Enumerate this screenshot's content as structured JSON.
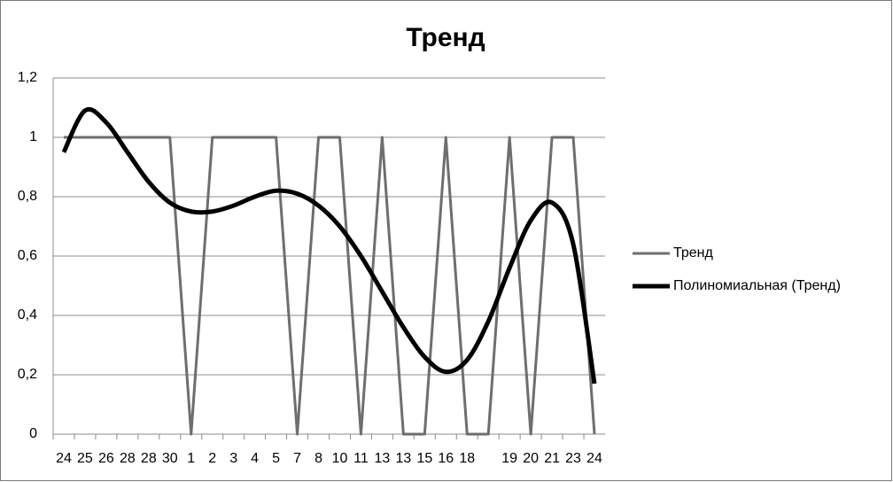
{
  "chart_data": {
    "type": "line",
    "title": "Тренд",
    "categories": [
      "24",
      "25",
      "26",
      "28",
      "28",
      "30",
      "1",
      "2",
      "3",
      "4",
      "5",
      "7",
      "8",
      "10",
      "11",
      "13",
      "13",
      "15",
      "16",
      "18",
      null,
      "19",
      "20",
      "21",
      "23",
      "24"
    ],
    "series": [
      {
        "name": "Тренд",
        "color": "#6e6e6e",
        "values": [
          1,
          1,
          1,
          1,
          1,
          1,
          0,
          1,
          1,
          1,
          1,
          0,
          1,
          1,
          0,
          1,
          0,
          0,
          1,
          0,
          0,
          1,
          0,
          1,
          1,
          0
        ]
      },
      {
        "name": "Полиномиальная (Тренд)",
        "color": "#000000",
        "values": [
          0.95,
          1.09,
          1.05,
          0.95,
          0.85,
          0.78,
          0.75,
          0.75,
          0.77,
          0.8,
          0.82,
          0.81,
          0.77,
          0.7,
          0.6,
          0.48,
          0.36,
          0.26,
          0.21,
          0.25,
          0.38,
          0.56,
          0.72,
          0.78,
          0.64,
          0.17
        ]
      }
    ],
    "ylim": [
      0,
      1.2
    ],
    "yticks": [
      0,
      {
        "value": 0.2,
        "label": "0,2"
      },
      {
        "value": 0.4,
        "label": "0,4"
      },
      {
        "value": 0.6,
        "label": "0,6"
      },
      {
        "value": 0.8,
        "label": "0,8"
      },
      1,
      {
        "value": 1.2,
        "label": "1,2"
      }
    ],
    "grid": true,
    "legend": "right"
  }
}
